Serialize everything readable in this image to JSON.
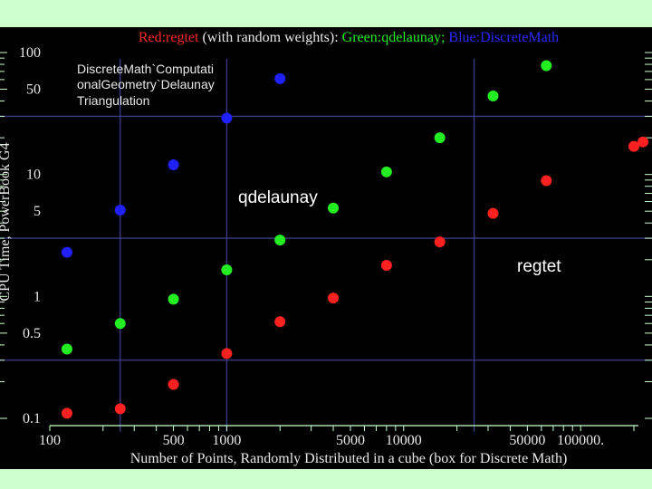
{
  "chart_data": {
    "type": "scatter",
    "title_parts": [
      {
        "text": "Red:regtet",
        "color": "#ff2a2a"
      },
      {
        "text": " (with random weights): ",
        "color": "#e8e8e8"
      },
      {
        "text": "Green:qdelaunay;",
        "color": "#22ee22"
      },
      {
        "text": "  Blue:DiscreteMath",
        "color": "#2a2aff"
      }
    ],
    "xlabel": "Number of Points, Randomly Distributed in a cube (box for Discrete Math)",
    "ylabel": "CPU Time, PowerBook G4",
    "x_scale": "log",
    "y_scale": "log",
    "xlim": [
      100,
      200000
    ],
    "ylim": [
      0.1,
      100
    ],
    "x_ticks": [
      {
        "value": 100,
        "label": "100"
      },
      {
        "value": 500,
        "label": "500"
      },
      {
        "value": 1000,
        "label": "1000"
      },
      {
        "value": 5000,
        "label": "5000"
      },
      {
        "value": 10000,
        "label": "10000"
      },
      {
        "value": 50000,
        "label": "50000"
      },
      {
        "value": 100000,
        "label": "100000."
      }
    ],
    "y_ticks": [
      {
        "value": 0.1,
        "label": "0.1"
      },
      {
        "value": 0.5,
        "label": "0.5"
      },
      {
        "value": 1,
        "label": "1"
      },
      {
        "value": 5,
        "label": "5"
      },
      {
        "value": 10,
        "label": "10"
      },
      {
        "value": 50,
        "label": "50"
      },
      {
        "value": 100,
        "label": "100"
      }
    ],
    "grid_x": [
      250,
      1000,
      25000
    ],
    "grid_y": [
      0.3,
      3,
      30
    ],
    "series": [
      {
        "name": "regtet",
        "color": "#ff2020",
        "points": [
          [
            125,
            0.11
          ],
          [
            250,
            0.12
          ],
          [
            500,
            0.19
          ],
          [
            1000,
            0.34
          ],
          [
            2000,
            0.62
          ],
          [
            4000,
            0.97
          ],
          [
            8000,
            1.8
          ],
          [
            16000,
            2.8
          ],
          [
            32000,
            4.8
          ],
          [
            64000,
            8.9
          ],
          [
            200000,
            17
          ],
          [
            225000,
            18.5
          ]
        ]
      },
      {
        "name": "qdelaunay",
        "color": "#22ee22",
        "points": [
          [
            125,
            0.37
          ],
          [
            250,
            0.6
          ],
          [
            500,
            0.95
          ],
          [
            1000,
            1.65
          ],
          [
            2000,
            2.9
          ],
          [
            4000,
            5.3
          ],
          [
            8000,
            10.5
          ],
          [
            16000,
            20
          ],
          [
            32000,
            44
          ],
          [
            64000,
            78
          ]
        ]
      },
      {
        "name": "DiscreteMath",
        "color": "#2020ff",
        "points": [
          [
            125,
            2.3
          ],
          [
            250,
            5.1
          ],
          [
            500,
            12
          ],
          [
            1000,
            29
          ],
          [
            2000,
            61
          ]
        ]
      }
    ],
    "annotations": [
      {
        "text": "DiscreteMath`Computati",
        "color": "#e8e8e8"
      },
      {
        "text": "onalGeometry`Delaunay",
        "color": "#e8e8e8"
      },
      {
        "text": "Triangulation",
        "color": "#e8e8e8"
      },
      {
        "text": "qdelaunay",
        "color": "#ffffff"
      },
      {
        "text": "regtet",
        "color": "#ffffff"
      }
    ],
    "grid": true,
    "background": "#000000",
    "frame_color": "#ccffcc"
  }
}
